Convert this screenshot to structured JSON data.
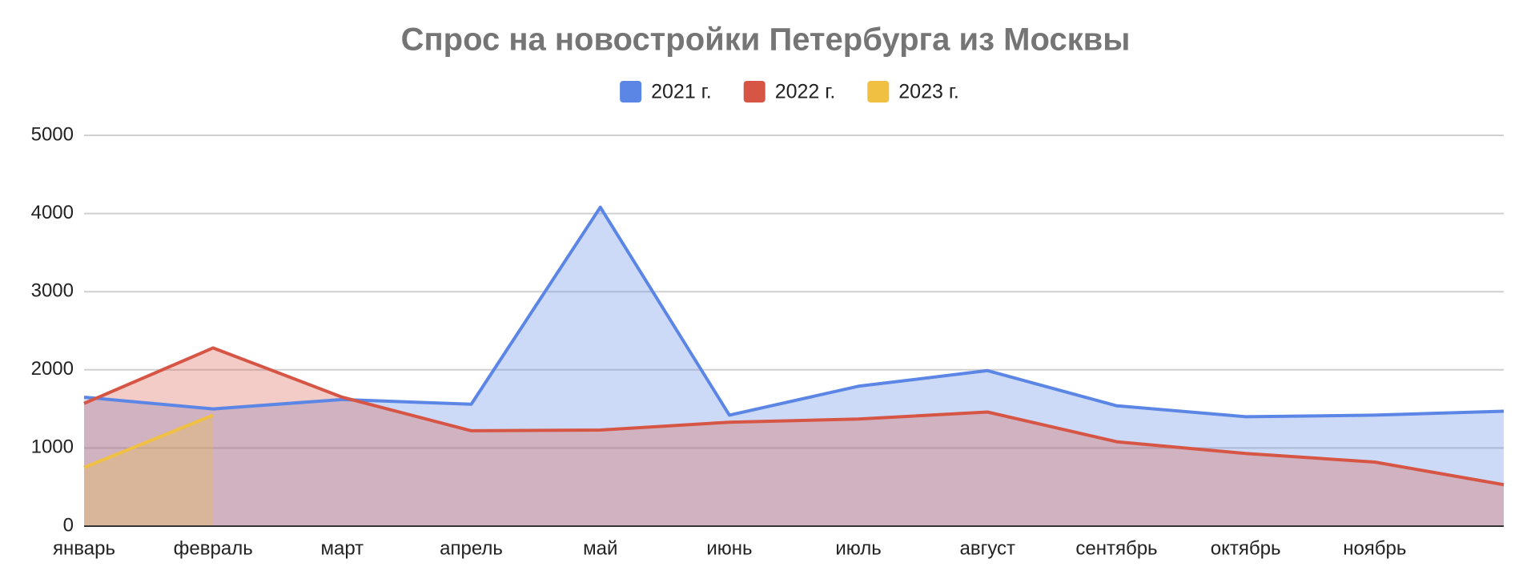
{
  "chart_data": {
    "type": "area",
    "title": "Спрос на новостройки Петербурга из Москвы",
    "categories": [
      "январь",
      "февраль",
      "март",
      "апрель",
      "май",
      "июнь",
      "июль",
      "август",
      "сентябрь",
      "октябрь",
      "ноябрь",
      null
    ],
    "series": [
      {
        "name": "2021 г.",
        "color": "#5b86e5",
        "values": [
          1650,
          1500,
          1620,
          1560,
          4080,
          1420,
          1790,
          1990,
          1540,
          1400,
          1420,
          1470
        ]
      },
      {
        "name": "2022 г.",
        "color": "#d65545",
        "values": [
          1570,
          2280,
          1650,
          1220,
          1230,
          1330,
          1370,
          1460,
          1080,
          930,
          820,
          530
        ]
      },
      {
        "name": "2023 г.",
        "color": "#f0c042",
        "values": [
          750,
          1420,
          null,
          null,
          null,
          null,
          null,
          null,
          null,
          null,
          null,
          null
        ]
      }
    ],
    "ylim": [
      0,
      5000
    ],
    "yticks": [
      0,
      1000,
      2000,
      3000,
      4000,
      5000
    ],
    "grid": true
  }
}
